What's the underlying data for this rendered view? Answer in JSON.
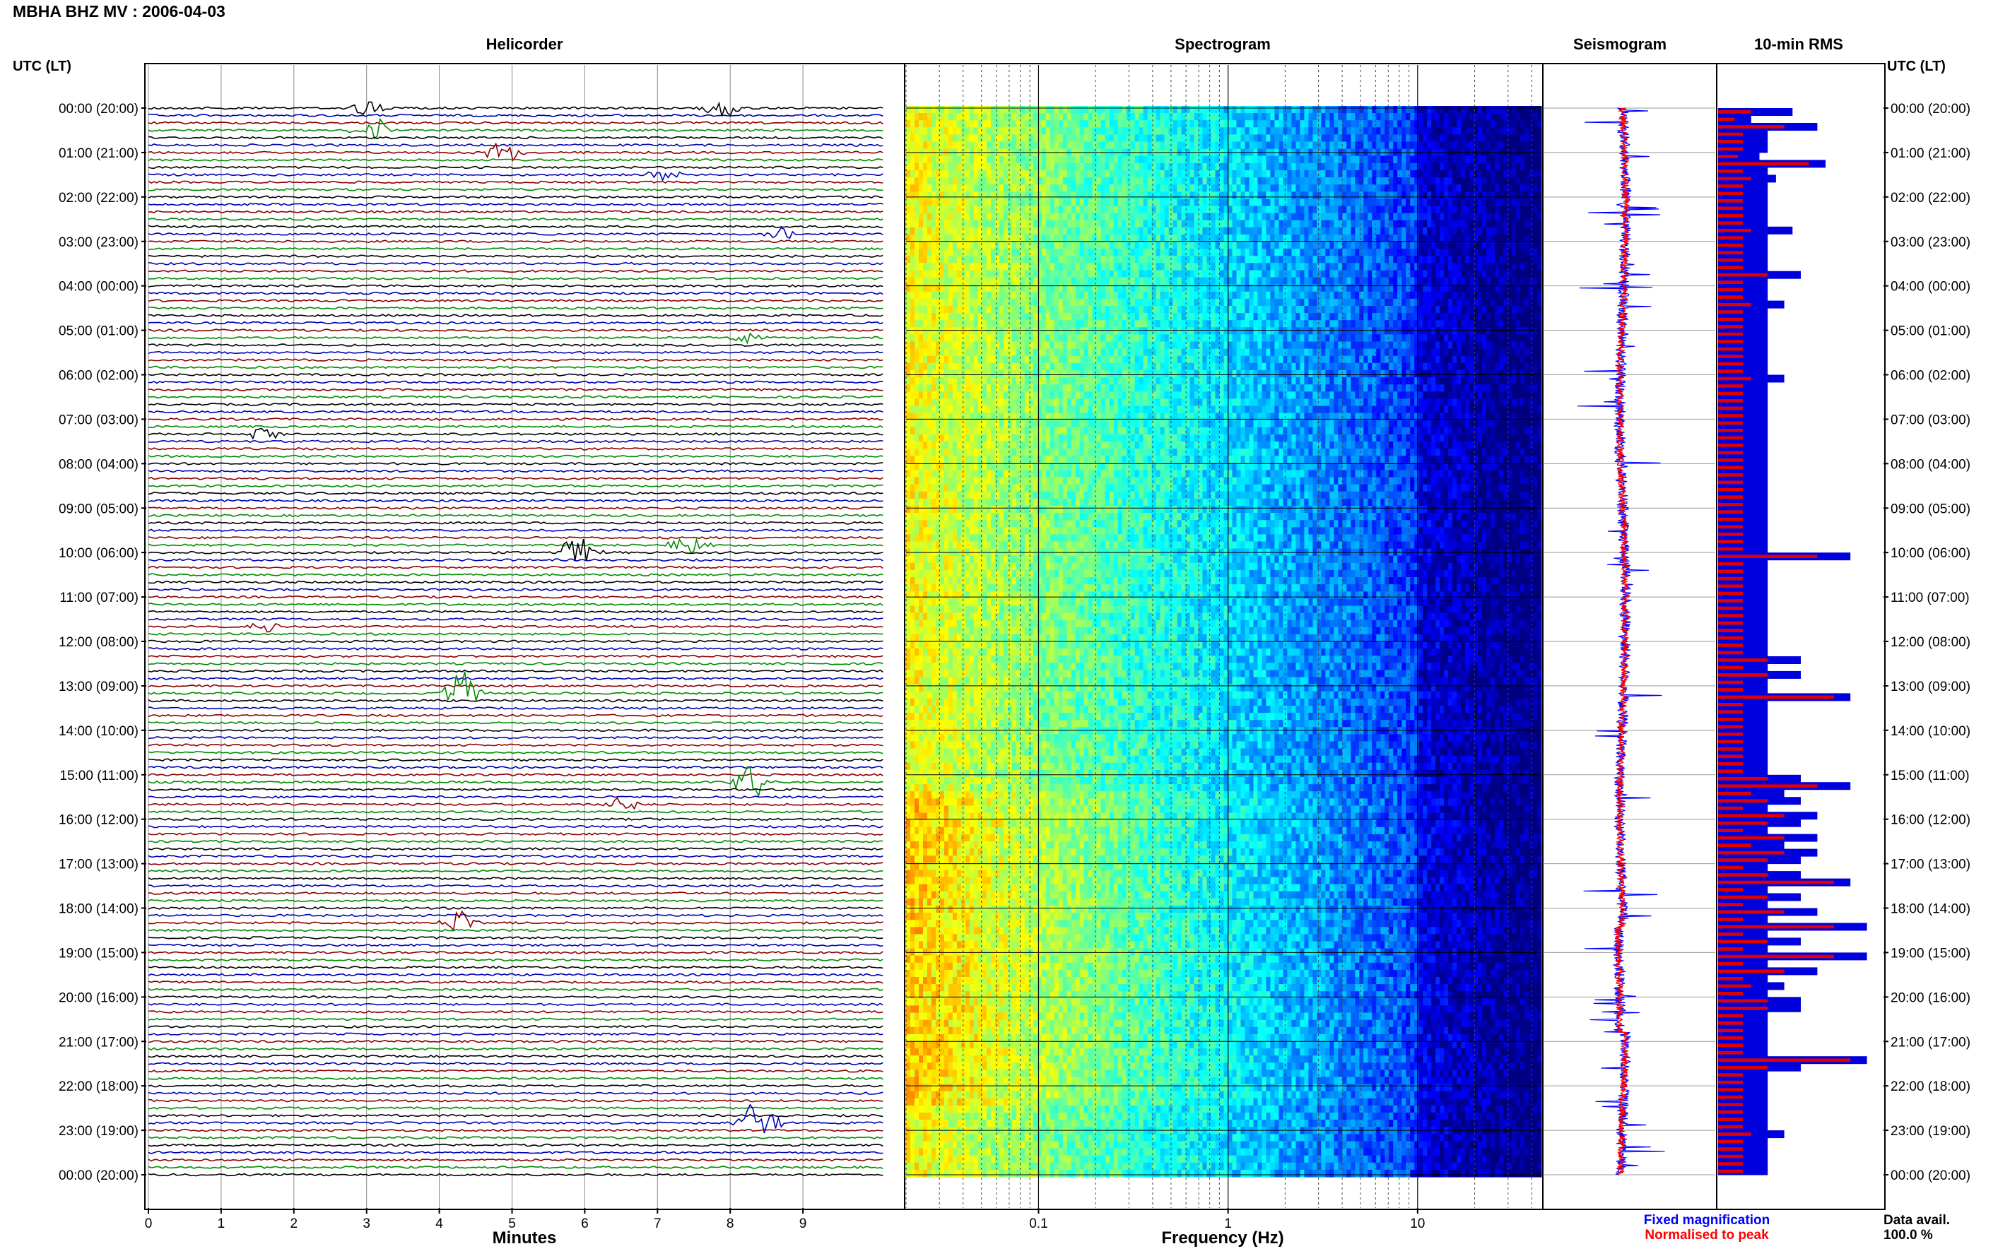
{
  "station_title": "MBHA BHZ MV : 2006-04-03",
  "panels": {
    "helicorder": "Helicorder",
    "spectrogram": "Spectrogram",
    "seismogram": "Seismogram",
    "rms": "10-min RMS"
  },
  "axis_header_left": "UTC (LT)",
  "axis_header_right": "UTC (LT)",
  "time_labels": [
    "00:00 (20:00)",
    "01:00 (21:00)",
    "02:00 (22:00)",
    "03:00 (23:00)",
    "04:00 (00:00)",
    "05:00 (01:00)",
    "06:00 (02:00)",
    "07:00 (03:00)",
    "08:00 (04:00)",
    "09:00 (05:00)",
    "10:00 (06:00)",
    "11:00 (07:00)",
    "12:00 (08:00)",
    "13:00 (09:00)",
    "14:00 (10:00)",
    "15:00 (11:00)",
    "16:00 (12:00)",
    "17:00 (13:00)",
    "18:00 (14:00)",
    "19:00 (15:00)",
    "20:00 (16:00)",
    "21:00 (17:00)",
    "22:00 (18:00)",
    "23:00 (19:00)",
    "00:00 (20:00)"
  ],
  "minutes_ticks": [
    "0",
    "1",
    "2",
    "3",
    "4",
    "5",
    "6",
    "7",
    "8",
    "9"
  ],
  "minutes_label": "Minutes",
  "frequency_ticks": [
    "0.1",
    "1",
    "10"
  ],
  "frequency_label": "Frequency (Hz)",
  "legend": {
    "fixed": "Fixed magnification",
    "normalised": "Normalised to peak",
    "data_avail": "Data avail.",
    "data_pct": "100.0 %"
  },
  "colors": {
    "trace_cycle": [
      "#000000",
      "#0000b4",
      "#8b0000",
      "#008c00"
    ],
    "rms_fixed": "#0000dd",
    "rms_normalised": "#e00000",
    "legend_blue": "#0000ff",
    "legend_red": "#ff0000"
  },
  "chart_data": {
    "type": "heatmap",
    "title": "MBHA BHZ MV : 2006-04-03",
    "helicorder": {
      "xlabel": "Minutes",
      "x_range": [
        0,
        10
      ],
      "rows_per_hour": 6,
      "row_count": 145,
      "events": [
        {
          "row": 0,
          "minute": 3.0,
          "amp": 1.2
        },
        {
          "row": 0,
          "minute": 7.9,
          "amp": 1.5
        },
        {
          "row": 3,
          "minute": 3.1,
          "amp": 2.0
        },
        {
          "row": 6,
          "minute": 4.9,
          "amp": 2.2
        },
        {
          "row": 9,
          "minute": 7.1,
          "amp": 1.0
        },
        {
          "row": 17,
          "minute": 8.7,
          "amp": 1.0
        },
        {
          "row": 31,
          "minute": 8.2,
          "amp": 1.0
        },
        {
          "row": 44,
          "minute": 1.6,
          "amp": 1.0
        },
        {
          "row": 60,
          "minute": 5.9,
          "amp": 3.0
        },
        {
          "row": 59,
          "minute": 7.4,
          "amp": 2.0
        },
        {
          "row": 70,
          "minute": 1.6,
          "amp": 1.0
        },
        {
          "row": 79,
          "minute": 4.3,
          "amp": 3.5
        },
        {
          "row": 91,
          "minute": 8.3,
          "amp": 3.0
        },
        {
          "row": 94,
          "minute": 6.5,
          "amp": 1.4
        },
        {
          "row": 110,
          "minute": 4.3,
          "amp": 2.0
        },
        {
          "row": 137,
          "minute": 8.4,
          "amp": 4.0
        }
      ]
    },
    "spectrogram": {
      "xlabel": "Frequency (Hz)",
      "x_scale": "log",
      "x_range": [
        0.02,
        45
      ],
      "colormap": "jet",
      "description_bands": [
        {
          "f_low": 0.02,
          "f_high": 0.25,
          "level": "high"
        },
        {
          "f_low": 0.25,
          "f_high": 2,
          "level": "medium"
        },
        {
          "f_low": 2,
          "f_high": 10,
          "level": "low"
        },
        {
          "f_low": 10,
          "f_high": 45,
          "level": "very low"
        }
      ]
    },
    "seismogram": {
      "series": [
        {
          "name": "Fixed magnification",
          "color": "#0000ff"
        },
        {
          "name": "Normalised to peak",
          "color": "#ff0000"
        }
      ]
    },
    "rms_10min": {
      "series": [
        {
          "name": "Fixed magnification",
          "color": "#0000dd",
          "values": [
            0.45,
            0.2,
            0.6,
            0.3,
            0.3,
            0.3,
            0.25,
            0.65,
            0.3,
            0.35,
            0.3,
            0.3,
            0.3,
            0.3,
            0.3,
            0.3,
            0.45,
            0.3,
            0.3,
            0.3,
            0.3,
            0.3,
            0.5,
            0.3,
            0.3,
            0.3,
            0.4,
            0.3,
            0.3,
            0.3,
            0.3,
            0.3,
            0.3,
            0.3,
            0.3,
            0.3,
            0.4,
            0.3,
            0.3,
            0.3,
            0.3,
            0.3,
            0.3,
            0.3,
            0.3,
            0.3,
            0.3,
            0.3,
            0.3,
            0.3,
            0.3,
            0.3,
            0.3,
            0.3,
            0.3,
            0.3,
            0.3,
            0.3,
            0.3,
            0.3,
            0.8,
            0.3,
            0.3,
            0.3,
            0.3,
            0.3,
            0.3,
            0.3,
            0.3,
            0.3,
            0.3,
            0.3,
            0.3,
            0.3,
            0.5,
            0.3,
            0.5,
            0.3,
            0.3,
            0.8,
            0.3,
            0.3,
            0.3,
            0.3,
            0.3,
            0.3,
            0.3,
            0.3,
            0.3,
            0.3,
            0.5,
            0.8,
            0.4,
            0.5,
            0.3,
            0.6,
            0.5,
            0.3,
            0.6,
            0.4,
            0.6,
            0.5,
            0.3,
            0.5,
            0.8,
            0.3,
            0.5,
            0.3,
            0.6,
            0.3,
            0.9,
            0.3,
            0.5,
            0.3,
            0.9,
            0.3,
            0.6,
            0.3,
            0.4,
            0.3,
            0.5,
            0.5,
            0.3,
            0.3,
            0.3,
            0.3,
            0.3,
            0.3,
            0.9,
            0.5,
            0.3,
            0.3,
            0.3,
            0.3,
            0.3,
            0.3,
            0.3,
            0.3,
            0.4,
            0.3,
            0.3,
            0.3,
            0.3,
            0.3
          ]
        },
        {
          "name": "Normalised to peak",
          "color": "#e00000",
          "values": [
            0.2,
            0.1,
            0.4,
            0.15,
            0.15,
            0.15,
            0.12,
            0.55,
            0.15,
            0.2,
            0.15,
            0.15,
            0.15,
            0.15,
            0.15,
            0.15,
            0.2,
            0.15,
            0.15,
            0.15,
            0.15,
            0.15,
            0.3,
            0.15,
            0.15,
            0.15,
            0.2,
            0.15,
            0.15,
            0.15,
            0.15,
            0.15,
            0.15,
            0.15,
            0.15,
            0.15,
            0.2,
            0.15,
            0.15,
            0.15,
            0.15,
            0.15,
            0.15,
            0.15,
            0.15,
            0.15,
            0.15,
            0.15,
            0.15,
            0.15,
            0.15,
            0.15,
            0.15,
            0.15,
            0.15,
            0.15,
            0.15,
            0.15,
            0.15,
            0.15,
            0.6,
            0.15,
            0.15,
            0.15,
            0.15,
            0.15,
            0.15,
            0.15,
            0.15,
            0.15,
            0.15,
            0.15,
            0.15,
            0.15,
            0.3,
            0.15,
            0.3,
            0.15,
            0.15,
            0.7,
            0.15,
            0.15,
            0.15,
            0.15,
            0.15,
            0.15,
            0.15,
            0.15,
            0.15,
            0.15,
            0.3,
            0.6,
            0.2,
            0.3,
            0.15,
            0.4,
            0.3,
            0.15,
            0.4,
            0.2,
            0.4,
            0.3,
            0.15,
            0.3,
            0.7,
            0.15,
            0.3,
            0.15,
            0.4,
            0.15,
            0.7,
            0.15,
            0.3,
            0.15,
            0.7,
            0.15,
            0.4,
            0.15,
            0.2,
            0.15,
            0.3,
            0.3,
            0.15,
            0.15,
            0.15,
            0.15,
            0.15,
            0.15,
            0.8,
            0.3,
            0.15,
            0.15,
            0.15,
            0.15,
            0.15,
            0.15,
            0.15,
            0.15,
            0.2,
            0.15,
            0.15,
            0.15,
            0.15,
            0.15
          ]
        }
      ]
    }
  }
}
